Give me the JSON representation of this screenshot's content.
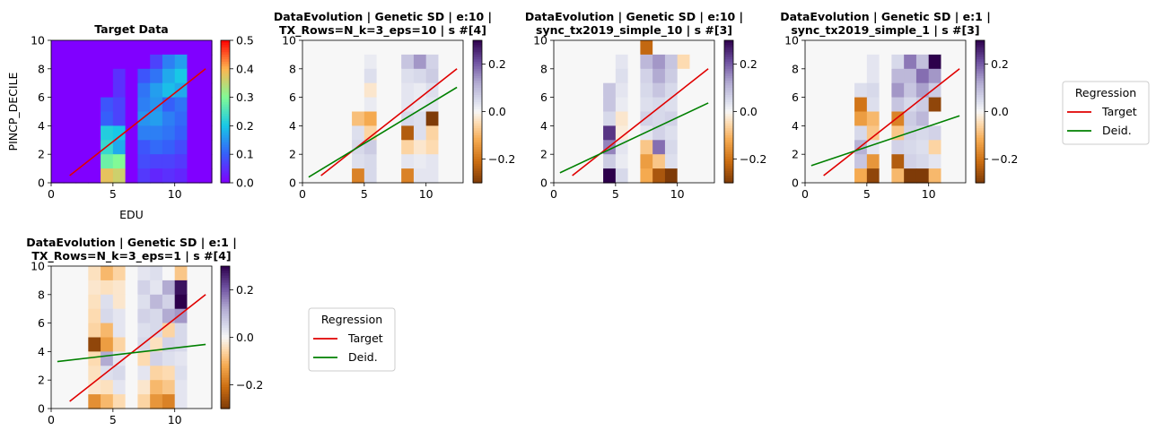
{
  "figure": {
    "legend_title": "Regression",
    "legend_entries": [
      "Target",
      "Deid."
    ]
  },
  "chart_data": [
    {
      "type": "heatmap",
      "title": "Target Data",
      "xlabel": "EDU",
      "ylabel": "PINCP_DECILE",
      "xlim": [
        0,
        13
      ],
      "ylim": [
        0,
        10
      ],
      "xticks": [
        0,
        5,
        10
      ],
      "yticks": [
        0,
        2,
        4,
        6,
        8,
        10
      ],
      "colormap": "rainbow",
      "colorbar": {
        "min": 0.0,
        "max": 0.5,
        "ticks": [
          "0.0",
          "0.1",
          "0.2",
          "0.3",
          "0.4",
          "0.5"
        ]
      },
      "cell_rows_top_to_bottom": [
        [
          0,
          0,
          0,
          0,
          0,
          0,
          0,
          0,
          0,
          0,
          0,
          0,
          0
        ],
        [
          0,
          0,
          0,
          0,
          0,
          0,
          0,
          0,
          0.07,
          0.13,
          0.16,
          0,
          0
        ],
        [
          0,
          0,
          0,
          0,
          0,
          0.05,
          0,
          0.09,
          0.12,
          0.17,
          0.2,
          0,
          0
        ],
        [
          0,
          0,
          0,
          0,
          0,
          0.05,
          0,
          0.12,
          0.16,
          0.19,
          0.17,
          0,
          0
        ],
        [
          0,
          0,
          0,
          0,
          0.09,
          0.07,
          0,
          0.13,
          0.15,
          0.1,
          0.12,
          0,
          0
        ],
        [
          0,
          0,
          0,
          0,
          0.1,
          0.07,
          0,
          0.15,
          0.16,
          0.13,
          0.11,
          0,
          0
        ],
        [
          0,
          0,
          0,
          0,
          0.21,
          0.2,
          0,
          0.13,
          0.13,
          0.12,
          0.1,
          0,
          0
        ],
        [
          0,
          0,
          0,
          0,
          0.23,
          0.17,
          0,
          0.09,
          0.11,
          0.1,
          0.08,
          0,
          0
        ],
        [
          0,
          0,
          0,
          0,
          0.28,
          0.3,
          0,
          0.08,
          0.07,
          0.07,
          0.06,
          0,
          0
        ],
        [
          0,
          0,
          0,
          0,
          0.38,
          0.36,
          0,
          0.06,
          0.04,
          0.05,
          0.04,
          0,
          0
        ]
      ],
      "series": [
        {
          "name": "Target",
          "x": [
            1.5,
            12.5
          ],
          "y": [
            0.5,
            8.0
          ]
        }
      ]
    },
    {
      "type": "heatmap",
      "title": "DataEvolution | Genetic SD | e:10 |\nTX_Rows=N_k=3_eps=10 | s #[4]",
      "xlim": [
        0,
        13
      ],
      "ylim": [
        0,
        10
      ],
      "xticks": [
        0,
        5,
        10
      ],
      "yticks": [
        0,
        2,
        4,
        6,
        8,
        10
      ],
      "colormap": "PuOr",
      "colorbar": {
        "min": -0.3,
        "max": 0.3,
        "ticks": [
          "−0.2",
          "0.0",
          "0.2"
        ]
      },
      "cell_rows_top_to_bottom": [
        [
          0,
          0,
          0,
          0,
          0,
          0,
          0,
          0,
          0,
          0,
          0,
          0,
          0
        ],
        [
          0,
          0,
          0,
          0,
          0,
          0.02,
          0,
          0,
          0.08,
          0.14,
          0.06,
          0,
          0
        ],
        [
          0,
          0,
          0,
          0,
          0,
          0.04,
          0,
          0,
          0.04,
          0.05,
          0.07,
          0,
          0
        ],
        [
          0,
          0,
          0,
          0,
          0,
          -0.03,
          0,
          0,
          0.03,
          0.02,
          0.04,
          0,
          0
        ],
        [
          0,
          0,
          0,
          0,
          0,
          0.02,
          0,
          0,
          0.03,
          0.02,
          0.03,
          0,
          0
        ],
        [
          0,
          0,
          0,
          0,
          -0.09,
          -0.12,
          0,
          0,
          0.05,
          0.04,
          -0.3,
          0,
          0
        ],
        [
          0,
          0,
          0,
          0,
          0.04,
          -0.06,
          0,
          0,
          -0.24,
          0.04,
          -0.06,
          0,
          0
        ],
        [
          0,
          0,
          0,
          0,
          0.05,
          0.07,
          0,
          0,
          -0.06,
          -0.03,
          -0.05,
          0,
          0
        ],
        [
          0,
          0,
          0,
          0,
          0.04,
          0.05,
          0,
          0,
          0.03,
          0.02,
          0.03,
          0,
          0
        ],
        [
          0,
          0,
          0,
          0,
          -0.18,
          0.05,
          0,
          0,
          -0.18,
          0.03,
          0.03,
          0,
          0
        ]
      ],
      "series": [
        {
          "name": "Target",
          "x": [
            1.5,
            12.5
          ],
          "y": [
            0.5,
            8.0
          ]
        },
        {
          "name": "Deid.",
          "x": [
            0.5,
            12.5
          ],
          "y": [
            0.4,
            6.7
          ]
        }
      ]
    },
    {
      "type": "heatmap",
      "title": "DataEvolution | Genetic SD | e:10 |\nsync_tx2019_simple_10 | s #[3]",
      "xlim": [
        0,
        13
      ],
      "ylim": [
        0,
        10
      ],
      "xticks": [
        0,
        5,
        10
      ],
      "yticks": [
        0,
        2,
        4,
        6,
        8,
        10
      ],
      "colormap": "PuOr",
      "colorbar": {
        "min": -0.3,
        "max": 0.3,
        "ticks": [
          "−0.2",
          "0.0",
          "0.2"
        ]
      },
      "cell_rows_top_to_bottom": [
        [
          0,
          0,
          0,
          0,
          0,
          0,
          0,
          -0.22,
          0,
          0,
          0,
          0,
          0
        ],
        [
          0,
          0,
          0,
          0,
          0,
          0.03,
          0,
          0.1,
          0.14,
          0.08,
          -0.05,
          0,
          0
        ],
        [
          0,
          0,
          0,
          0,
          0,
          0.04,
          0,
          0.06,
          0.12,
          0.07,
          0,
          0,
          0
        ],
        [
          0,
          0,
          0,
          0,
          0.08,
          0.03,
          0,
          0.05,
          0.08,
          0.05,
          0,
          0,
          0
        ],
        [
          0,
          0,
          0,
          0,
          0.08,
          0.02,
          0,
          0.04,
          0.05,
          0.04,
          0,
          0,
          0
        ],
        [
          0,
          0,
          0,
          0,
          0.05,
          -0.03,
          0,
          0.06,
          0.05,
          0.06,
          0,
          0,
          0
        ],
        [
          0,
          0,
          0,
          0,
          0.24,
          -0.02,
          0,
          0.03,
          0.06,
          0.04,
          0,
          0,
          0
        ],
        [
          0,
          0,
          0,
          0,
          0.16,
          0.03,
          0,
          -0.08,
          0.18,
          0.05,
          0,
          0,
          0
        ],
        [
          0,
          0,
          0,
          0,
          0.07,
          0.02,
          0,
          -0.14,
          -0.08,
          0.04,
          0,
          0,
          0
        ],
        [
          0,
          0,
          0,
          0,
          0.3,
          0.05,
          0,
          -0.12,
          -0.25,
          -0.3,
          0,
          0,
          0
        ]
      ],
      "series": [
        {
          "name": "Target",
          "x": [
            1.5,
            12.5
          ],
          "y": [
            0.5,
            8.0
          ]
        },
        {
          "name": "Deid.",
          "x": [
            0.5,
            12.5
          ],
          "y": [
            0.7,
            5.6
          ]
        }
      ]
    },
    {
      "type": "heatmap",
      "title": "DataEvolution | Genetic SD | e:1 |\nsync_tx2019_simple_1 | s #[3]",
      "xlim": [
        0,
        13
      ],
      "ylim": [
        0,
        10
      ],
      "xticks": [
        0,
        5,
        10
      ],
      "yticks": [
        0,
        2,
        4,
        6,
        8,
        10
      ],
      "colormap": "PuOr",
      "colorbar": {
        "min": -0.3,
        "max": 0.3,
        "ticks": [
          "−0.2",
          "0.0",
          "0.2"
        ]
      },
      "cell_rows_top_to_bottom": [
        [
          0,
          0,
          0,
          0,
          0,
          0,
          0,
          0,
          0,
          0,
          0,
          0,
          0
        ],
        [
          0,
          0,
          0,
          0,
          0,
          0.03,
          0,
          0.05,
          0.17,
          0.09,
          0.3,
          0,
          0
        ],
        [
          0,
          0,
          0,
          0,
          0,
          0.03,
          0,
          0.1,
          0.1,
          0.18,
          0.14,
          0,
          0
        ],
        [
          0,
          0,
          0,
          0,
          0.04,
          0.05,
          0,
          0.14,
          0.08,
          0.13,
          0.07,
          0,
          0
        ],
        [
          0,
          0,
          0,
          0,
          -0.2,
          0.04,
          0,
          0.08,
          0.05,
          0.07,
          -0.28,
          0,
          0
        ],
        [
          0,
          0,
          0,
          0,
          -0.14,
          -0.1,
          0,
          -0.18,
          0.07,
          0.1,
          0,
          0,
          0
        ],
        [
          0,
          0,
          0,
          0,
          0.05,
          -0.08,
          0,
          -0.08,
          0.06,
          0.05,
          0.06,
          0,
          0
        ],
        [
          0,
          0,
          0,
          0,
          0.11,
          0.03,
          0,
          0.06,
          0.05,
          0.04,
          -0.06,
          0,
          0
        ],
        [
          0,
          0,
          0,
          0,
          0.08,
          -0.15,
          0,
          -0.24,
          0.06,
          0.05,
          0.03,
          0,
          0
        ],
        [
          0,
          0,
          0,
          0,
          -0.12,
          -0.28,
          0,
          -0.1,
          -0.3,
          -0.3,
          -0.1,
          0,
          0
        ]
      ],
      "series": [
        {
          "name": "Target",
          "x": [
            1.5,
            12.5
          ],
          "y": [
            0.5,
            8.0
          ]
        },
        {
          "name": "Deid.",
          "x": [
            0.5,
            12.5
          ],
          "y": [
            1.2,
            4.7
          ]
        }
      ]
    },
    {
      "type": "heatmap",
      "title": "DataEvolution | Genetic SD | e:1 |\nTX_Rows=N_k=3_eps=1 | s #[4]",
      "xlim": [
        0,
        13
      ],
      "ylim": [
        0,
        10
      ],
      "xticks": [
        0,
        5,
        10
      ],
      "yticks": [
        0,
        2,
        4,
        6,
        8,
        10
      ],
      "colormap": "PuOr",
      "colorbar": {
        "min": -0.3,
        "max": 0.3,
        "ticks": [
          "−0.2",
          "0.0",
          "0.2"
        ]
      },
      "cell_rows_top_to_bottom": [
        [
          0,
          0,
          0,
          -0.04,
          -0.1,
          -0.06,
          0,
          0.03,
          0.04,
          0,
          -0.08,
          0,
          0
        ],
        [
          0,
          0,
          0,
          -0.03,
          -0.04,
          -0.03,
          0,
          0.06,
          0.03,
          0.12,
          0.28,
          0,
          0
        ],
        [
          0,
          0,
          0,
          -0.04,
          0.04,
          -0.03,
          0,
          0.04,
          0.1,
          0.06,
          0.34,
          0,
          0
        ],
        [
          0,
          0,
          0,
          -0.05,
          0.05,
          0.03,
          0,
          0.06,
          0.05,
          0.12,
          0.14,
          0,
          0
        ],
        [
          0,
          0,
          0,
          -0.06,
          -0.1,
          0.03,
          0,
          0.04,
          0.05,
          -0.06,
          0.05,
          0,
          0
        ],
        [
          0,
          0,
          0,
          -0.28,
          -0.14,
          -0.06,
          0,
          0.05,
          -0.04,
          0.06,
          0.05,
          0,
          0
        ],
        [
          0,
          0,
          0,
          -0.05,
          0.12,
          0.03,
          0,
          -0.05,
          0.06,
          0.04,
          0.03,
          0,
          0
        ],
        [
          0,
          0,
          0,
          -0.04,
          0.04,
          0.05,
          0,
          0.03,
          -0.06,
          -0.05,
          0.04,
          0,
          0
        ],
        [
          0,
          0,
          0,
          -0.03,
          -0.04,
          0.03,
          0,
          -0.03,
          -0.1,
          -0.08,
          0.03,
          0,
          0
        ],
        [
          0,
          0,
          0,
          -0.16,
          -0.1,
          -0.05,
          0,
          -0.06,
          -0.15,
          -0.18,
          0.03,
          0,
          0
        ]
      ],
      "series": [
        {
          "name": "Target",
          "x": [
            1.5,
            12.5
          ],
          "y": [
            0.5,
            8.0
          ]
        },
        {
          "name": "Deid.",
          "x": [
            0.5,
            12.5
          ],
          "y": [
            3.3,
            4.5
          ]
        }
      ]
    }
  ]
}
